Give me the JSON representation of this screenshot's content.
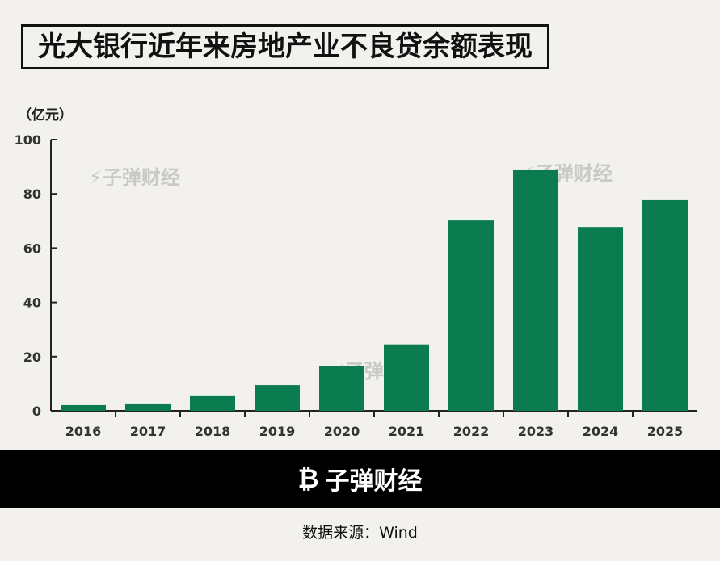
{
  "chart_data": {
    "type": "bar",
    "title": "光大银行近年来房地产业不良贷余额表现",
    "ylabel": "（亿元）",
    "xlabel": "",
    "categories": [
      "2016",
      "2017",
      "2018",
      "2019",
      "2020",
      "2021",
      "2022",
      "2023",
      "2024",
      "2025"
    ],
    "values": [
      2.1,
      2.7,
      5.7,
      9.5,
      16.4,
      24.5,
      70.2,
      89.0,
      67.8,
      77.7
    ],
    "ylim": [
      0,
      100
    ],
    "yticks": [
      "0",
      "20",
      "40",
      "60",
      "80",
      "100"
    ],
    "grid": false,
    "bar_color": "#0b7c4f"
  },
  "watermark": "子弹财经",
  "footer": {
    "brand": "子弹财经"
  },
  "source": "数据来源：Wind"
}
